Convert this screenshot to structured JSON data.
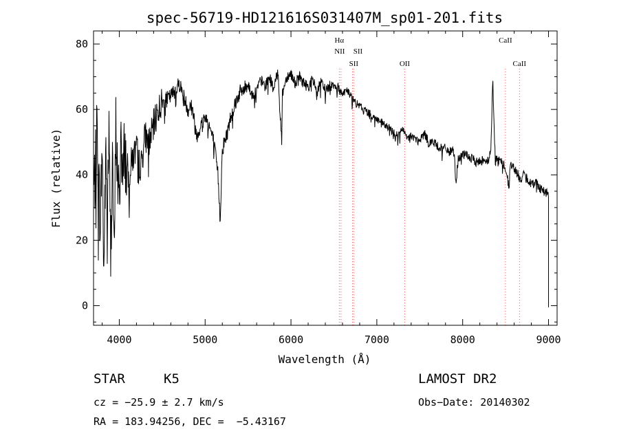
{
  "chart_data": {
    "type": "line",
    "title": "spec-56719-HD121616S031407M_sp01-201.fits",
    "xlabel": "Wavelength (Å)",
    "ylabel": "Flux (relative)",
    "xlim": [
      3700,
      9100
    ],
    "ylim": [
      -6,
      84
    ],
    "xticks": [
      4000,
      5000,
      6000,
      7000,
      8000,
      9000
    ],
    "yticks": [
      0,
      20,
      40,
      60,
      80
    ],
    "grid": false,
    "series": [
      {
        "color": "#000000",
        "x": [
          3700,
          3720,
          3740,
          3760,
          3780,
          3800,
          3820,
          3840,
          3860,
          3880,
          3900,
          3920,
          3940,
          3960,
          3980,
          4000,
          4020,
          4040,
          4060,
          4080,
          4100,
          4150,
          4200,
          4250,
          4300,
          4350,
          4400,
          4450,
          4500,
          4550,
          4600,
          4650,
          4700,
          4750,
          4800,
          4850,
          4863,
          4900,
          4950,
          5000,
          5050,
          5100,
          5150,
          5175,
          5200,
          5250,
          5300,
          5350,
          5400,
          5450,
          5500,
          5550,
          5600,
          5650,
          5700,
          5750,
          5800,
          5850,
          5870,
          5893,
          5900,
          5950,
          6000,
          6050,
          6100,
          6150,
          6200,
          6250,
          6300,
          6350,
          6400,
          6450,
          6500,
          6563,
          6600,
          6650,
          6700,
          6750,
          6800,
          6850,
          6900,
          6950,
          7000,
          7050,
          7100,
          7150,
          7200,
          7250,
          7300,
          7350,
          7400,
          7450,
          7500,
          7550,
          7600,
          7650,
          7700,
          7750,
          7800,
          7850,
          7900,
          7920,
          7950,
          8000,
          8050,
          8100,
          8150,
          8200,
          8250,
          8300,
          8330,
          8350,
          8380,
          8400,
          8450,
          8500,
          8542,
          8550,
          8600,
          8650,
          8662,
          8700,
          8750,
          8800,
          8850,
          8900,
          8950,
          9000
        ],
        "y": [
          35,
          40,
          55,
          38,
          25,
          50,
          10,
          45,
          30,
          52,
          15,
          48,
          12,
          55,
          40,
          30,
          55,
          35,
          50,
          42,
          38,
          45,
          48,
          42,
          52,
          50,
          55,
          60,
          62,
          63,
          64,
          66,
          68,
          64,
          60,
          62,
          58,
          52,
          55,
          58,
          55,
          50,
          40,
          26,
          48,
          52,
          58,
          62,
          65,
          66,
          68,
          64,
          66,
          69,
          67,
          70,
          66,
          72,
          60,
          50,
          65,
          70,
          71,
          68,
          70,
          68,
          67,
          69,
          66,
          68,
          66,
          67,
          68,
          66,
          65,
          66,
          64,
          62,
          61,
          60,
          59,
          58,
          57,
          56,
          55,
          54,
          53,
          52,
          54,
          51,
          52,
          51,
          50,
          53,
          50,
          50,
          49,
          48,
          48,
          47,
          47,
          38,
          45,
          46,
          46,
          45,
          44,
          44,
          45,
          44,
          48,
          70,
          44,
          45,
          44,
          42,
          36,
          43,
          42,
          40,
          38,
          40,
          39,
          37,
          38,
          36,
          35,
          34
        ]
      }
    ],
    "annotations": [
      {
        "label": "Hα",
        "x": 6563
      },
      {
        "label": "NII",
        "x": 6583
      },
      {
        "label": "SII",
        "x": 6716
      },
      {
        "label": "SII",
        "x": 6731
      },
      {
        "label": "OII",
        "x": 7325
      },
      {
        "label": "CaII",
        "x": 8498
      },
      {
        "label": "CaII",
        "x": 8662
      }
    ]
  },
  "info": {
    "object_type": "STAR",
    "subclass": "K5",
    "cz": "cz = −25.9 ± 2.7 km/s",
    "coords": "RA = 183.94256, DEC =  −5.43167",
    "survey": "LAMOST DR2",
    "obs_date": "Obs−Date: 20140302"
  }
}
